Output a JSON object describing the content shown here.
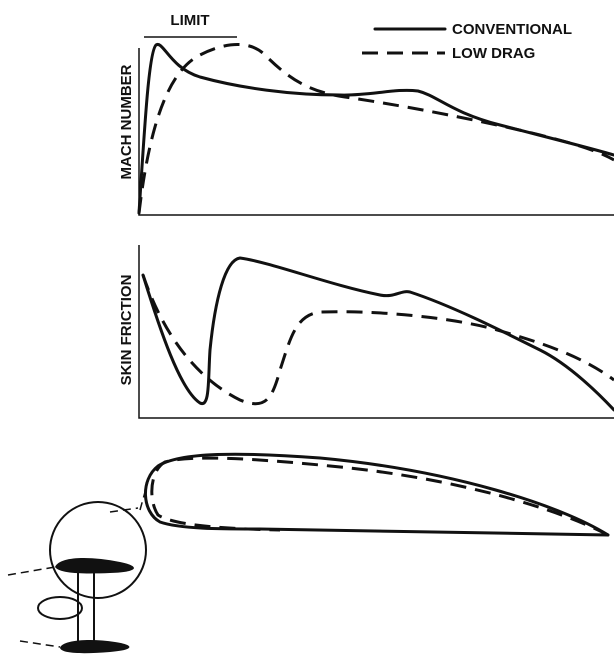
{
  "limit_label": "LIMIT",
  "legend": [
    {
      "label": "CONVENTIONAL"
    },
    {
      "label": "LOW DRAG"
    }
  ],
  "panels": [
    {
      "y_label": "MACH NUMBER"
    },
    {
      "y_label": "SKIN FRICTION"
    }
  ]
}
